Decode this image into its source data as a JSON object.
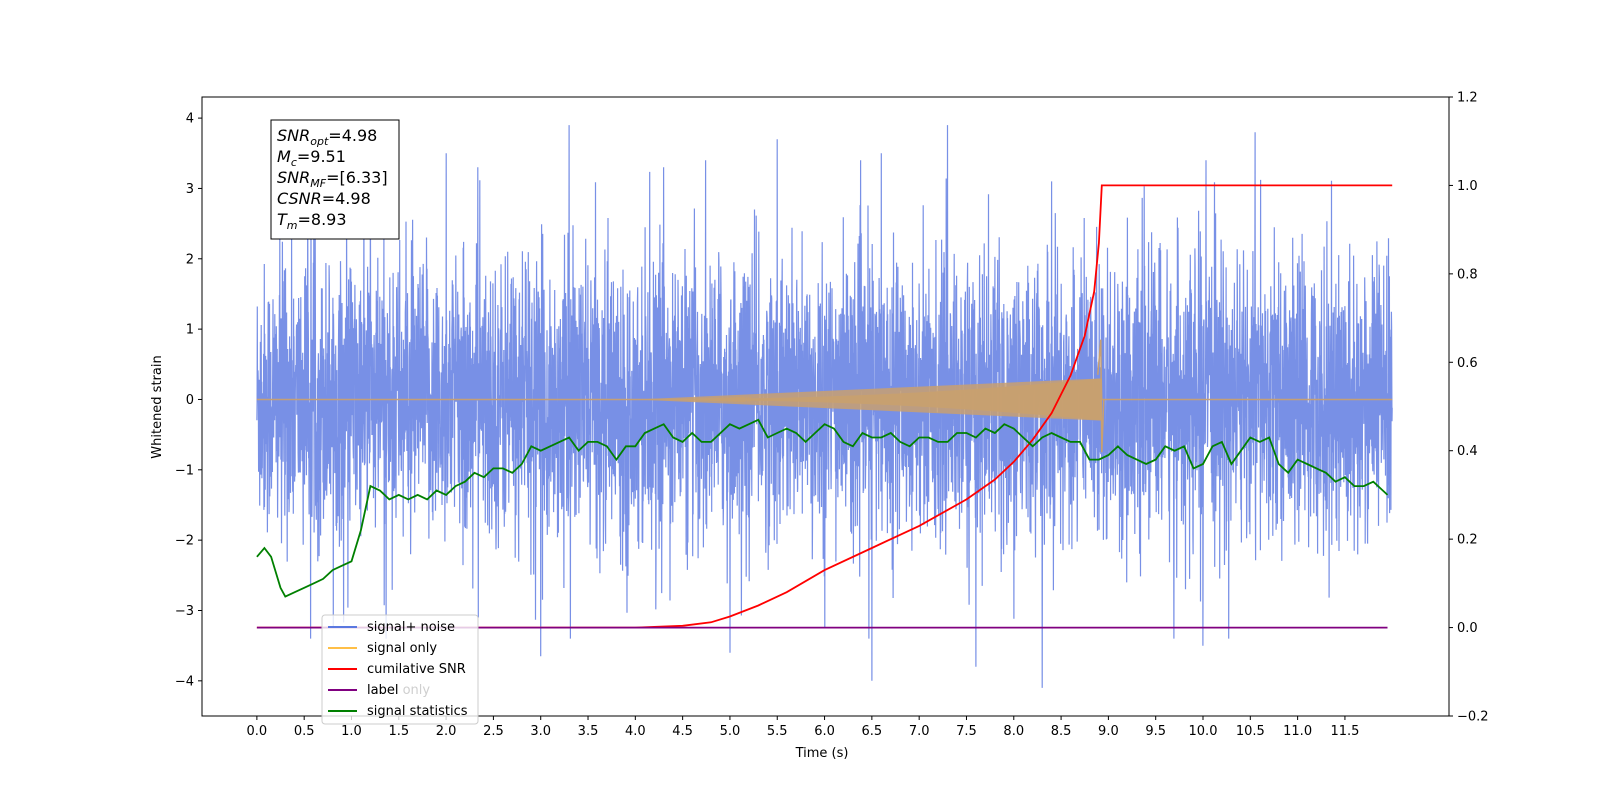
{
  "chart_data": {
    "type": "line",
    "xlabel": "Time (s)",
    "ylabel": "Whitened strain",
    "xlim": [
      -0.58,
      12.6
    ],
    "ylim": [
      -4.5,
      4.3
    ],
    "y2lim": [
      -0.2,
      1.2
    ],
    "x_ticks": [
      "0.0",
      "0.5",
      "1.0",
      "1.5",
      "2.0",
      "2.5",
      "3.0",
      "3.5",
      "4.0",
      "4.5",
      "5.0",
      "5.5",
      "6.0",
      "6.5",
      "7.0",
      "7.5",
      "8.0",
      "8.5",
      "9.0",
      "9.5",
      "10.0",
      "10.5",
      "11.0",
      "11.5"
    ],
    "y_ticks": [
      "4",
      "3",
      "2",
      "1",
      "0",
      "−1",
      "−2",
      "−3",
      "−4"
    ],
    "y2_ticks": [
      "1.2",
      "1.0",
      "0.8",
      "0.6",
      "0.4",
      "0.2",
      "0.0",
      "−0.2"
    ],
    "annotation": {
      "lines": [
        {
          "base": "SNR",
          "sub": "opt",
          "value": "=4.98"
        },
        {
          "base": "M",
          "sub": "c",
          "value": "=9.51"
        },
        {
          "base": "SNR",
          "sub": "MF",
          "value": "=[6.33]"
        },
        {
          "base": "CSNR",
          "sub": "",
          "value": "=4.98"
        },
        {
          "base": "T",
          "sub": "m",
          "value": "=8.93"
        }
      ]
    },
    "legend": {
      "placement": "lower-left",
      "entries": [
        {
          "label": "signal+ noise",
          "color": "#5a78e0"
        },
        {
          "label": "signal only",
          "color": "#ffbf47"
        },
        {
          "label": "cumilative SNR",
          "color": "#ff0000"
        },
        {
          "label": "label",
          "color": "#800080"
        },
        {
          "label": "signal statistics",
          "color": "#008000"
        }
      ],
      "hidden_overlap_text": "label only"
    },
    "series": [
      {
        "name": "signal+ noise",
        "color": "#5a78e0",
        "axis": "left",
        "style": "noise",
        "x_range": [
          0.0,
          12.0
        ],
        "envelope": [
          -2.5,
          2.5
        ],
        "peaks": [
          {
            "x": 3.3,
            "y": 3.9
          },
          {
            "x": 7.3,
            "y": 3.9
          },
          {
            "x": 10.55,
            "y": 3.8
          },
          {
            "x": 1.2,
            "y": 3.2
          },
          {
            "x": 5.5,
            "y": 3.7
          },
          {
            "x": 8.4,
            "y": 3.1
          },
          {
            "x": 2.0,
            "y": 3.5
          },
          {
            "x": 4.3,
            "y": 3.3
          },
          {
            "x": 6.6,
            "y": 3.5
          },
          {
            "x": 6.5,
            "y": -4.0
          },
          {
            "x": 8.3,
            "y": -4.1
          },
          {
            "x": 7.6,
            "y": -3.8
          },
          {
            "x": 3.0,
            "y": -3.65
          },
          {
            "x": 10.0,
            "y": -3.5
          },
          {
            "x": 5.0,
            "y": -3.6
          }
        ]
      },
      {
        "name": "signal only",
        "color": "#c8a070",
        "axis": "left",
        "style": "chirp",
        "start": 4.0,
        "merger": 8.93,
        "max_amp": 0.3,
        "spike": [
          0.85,
          -0.75
        ]
      },
      {
        "name": "cumilative SNR",
        "color": "#ff0000",
        "axis": "right",
        "x": [
          0.0,
          3.0,
          4.0,
          4.5,
          4.8,
          5.0,
          5.3,
          5.6,
          6.0,
          6.5,
          7.0,
          7.5,
          7.8,
          8.0,
          8.2,
          8.4,
          8.6,
          8.75,
          8.85,
          8.9,
          8.93,
          12.0
        ],
        "values": [
          0.0,
          0.0,
          0.0,
          0.004,
          0.012,
          0.025,
          0.05,
          0.08,
          0.13,
          0.18,
          0.23,
          0.29,
          0.335,
          0.375,
          0.425,
          0.485,
          0.57,
          0.66,
          0.76,
          0.87,
          1.0,
          1.0
        ]
      },
      {
        "name": "label",
        "color": "#800080",
        "axis": "right",
        "x": [
          0.0,
          11.95
        ],
        "values": [
          0.0,
          0.0
        ]
      },
      {
        "name": "signal statistics",
        "color": "#008000",
        "axis": "right",
        "x": [
          0.0,
          0.08,
          0.15,
          0.25,
          0.3,
          0.4,
          0.5,
          0.6,
          0.7,
          0.8,
          0.9,
          1.0,
          1.1,
          1.2,
          1.3,
          1.4,
          1.5,
          1.6,
          1.7,
          1.8,
          1.9,
          2.0,
          2.1,
          2.2,
          2.3,
          2.4,
          2.5,
          2.6,
          2.7,
          2.8,
          2.9,
          3.0,
          3.1,
          3.2,
          3.3,
          3.4,
          3.5,
          3.6,
          3.7,
          3.8,
          3.9,
          4.0,
          4.1,
          4.2,
          4.3,
          4.4,
          4.5,
          4.6,
          4.7,
          4.8,
          4.9,
          5.0,
          5.1,
          5.2,
          5.3,
          5.4,
          5.5,
          5.6,
          5.7,
          5.8,
          5.9,
          6.0,
          6.1,
          6.2,
          6.3,
          6.4,
          6.5,
          6.6,
          6.7,
          6.8,
          6.9,
          7.0,
          7.1,
          7.2,
          7.3,
          7.4,
          7.5,
          7.6,
          7.7,
          7.8,
          7.9,
          8.0,
          8.1,
          8.2,
          8.3,
          8.4,
          8.5,
          8.6,
          8.7,
          8.8,
          8.9,
          9.0,
          9.1,
          9.2,
          9.3,
          9.4,
          9.5,
          9.6,
          9.7,
          9.8,
          9.9,
          10.0,
          10.1,
          10.2,
          10.3,
          10.4,
          10.5,
          10.6,
          10.7,
          10.8,
          10.9,
          11.0,
          11.1,
          11.2,
          11.3,
          11.4,
          11.5,
          11.6,
          11.7,
          11.8,
          11.9,
          11.95
        ],
        "values": [
          0.16,
          0.18,
          0.16,
          0.09,
          0.07,
          0.08,
          0.09,
          0.1,
          0.11,
          0.13,
          0.14,
          0.15,
          0.22,
          0.32,
          0.31,
          0.29,
          0.3,
          0.29,
          0.3,
          0.29,
          0.31,
          0.3,
          0.32,
          0.33,
          0.35,
          0.34,
          0.36,
          0.36,
          0.35,
          0.37,
          0.41,
          0.4,
          0.41,
          0.42,
          0.43,
          0.4,
          0.42,
          0.42,
          0.41,
          0.38,
          0.41,
          0.41,
          0.44,
          0.45,
          0.46,
          0.43,
          0.42,
          0.44,
          0.42,
          0.42,
          0.44,
          0.46,
          0.45,
          0.46,
          0.47,
          0.43,
          0.44,
          0.45,
          0.44,
          0.42,
          0.44,
          0.46,
          0.45,
          0.42,
          0.41,
          0.44,
          0.43,
          0.43,
          0.44,
          0.42,
          0.41,
          0.43,
          0.43,
          0.42,
          0.42,
          0.44,
          0.44,
          0.43,
          0.45,
          0.44,
          0.46,
          0.45,
          0.43,
          0.41,
          0.43,
          0.44,
          0.43,
          0.42,
          0.42,
          0.38,
          0.38,
          0.39,
          0.41,
          0.39,
          0.38,
          0.37,
          0.38,
          0.41,
          0.4,
          0.41,
          0.36,
          0.37,
          0.41,
          0.42,
          0.37,
          0.4,
          0.43,
          0.42,
          0.43,
          0.37,
          0.35,
          0.38,
          0.37,
          0.36,
          0.35,
          0.33,
          0.34,
          0.32,
          0.32,
          0.33,
          0.31,
          0.3
        ]
      }
    ]
  }
}
